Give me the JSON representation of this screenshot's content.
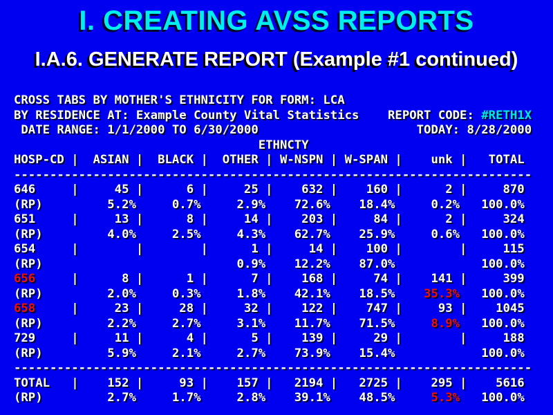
{
  "colors": {
    "background": "#0000F0",
    "title": "#00EEEE",
    "text": "#FFFFFF",
    "alert": "#EE1100",
    "code": "#00E6E6"
  },
  "slide": {
    "title": "I. CREATING AVSS REPORTS",
    "subtitle": "I.A.6. GENERATE REPORT (Example #1 continued)"
  },
  "report": {
    "meta_lines": [
      [
        {
          "t": "CROSS TABS BY MOTHER'S ETHNICITY FOR FORM: LCA"
        }
      ],
      [
        {
          "t": "BY RESIDENCE AT: Example County Vital Statistics    REPORT CODE: "
        },
        {
          "t": "#RETH1X",
          "c": "cyan",
          "n": "report-code"
        }
      ],
      [
        {
          "t": " DATE RANGE: 1/1/2000 TO 6/30/2000                      TODAY: 8/28/2000"
        }
      ],
      [
        {
          "t": "                                  ETHNCTY",
          "n": "group-header-ethncty"
        }
      ]
    ],
    "table": {
      "columns": [
        "HOSP-CD",
        "ASIAN",
        "BLACK",
        "OTHER",
        "W-NSPN",
        "W-SPAN",
        "unk",
        "TOTAL"
      ],
      "percent_label": "(RP)",
      "separator_char": "-",
      "separator_count": 72,
      "rows": [
        {
          "label": "646",
          "counts": [
            "45",
            "6",
            "25",
            "632",
            "160",
            "2",
            "870"
          ],
          "pcts": [
            "5.2%",
            "0.7%",
            "2.9%",
            "72.6%",
            "18.4%",
            "0.2%",
            "100.0%"
          ],
          "red_label": false,
          "red_pcts": []
        },
        {
          "label": "651",
          "counts": [
            "13",
            "8",
            "14",
            "203",
            "84",
            "2",
            "324"
          ],
          "pcts": [
            "4.0%",
            "2.5%",
            "4.3%",
            "62.7%",
            "25.9%",
            "0.6%",
            "100.0%"
          ],
          "red_label": false,
          "red_pcts": []
        },
        {
          "label": "654",
          "counts": [
            "",
            "",
            "1",
            "14",
            "100",
            "",
            "115"
          ],
          "pcts": [
            "",
            "",
            "0.9%",
            "12.2%",
            "87.0%",
            "",
            "100.0%"
          ],
          "red_label": false,
          "red_pcts": []
        },
        {
          "label": "656",
          "counts": [
            "8",
            "1",
            "7",
            "168",
            "74",
            "141",
            "399"
          ],
          "pcts": [
            "2.0%",
            "0.3%",
            "1.8%",
            "42.1%",
            "18.5%",
            "35.3%",
            "100.0%"
          ],
          "red_label": true,
          "red_pcts": [
            5
          ]
        },
        {
          "label": "658",
          "counts": [
            "23",
            "28",
            "32",
            "122",
            "747",
            "93",
            "1045"
          ],
          "pcts": [
            "2.2%",
            "2.7%",
            "3.1%",
            "11.7%",
            "71.5%",
            "8.9%",
            "100.0%"
          ],
          "red_label": true,
          "red_pcts": [
            5
          ]
        },
        {
          "label": "729",
          "counts": [
            "11",
            "4",
            "5",
            "139",
            "29",
            "",
            "188"
          ],
          "pcts": [
            "5.9%",
            "2.1%",
            "2.7%",
            "73.9%",
            "15.4%",
            "",
            "100.0%"
          ],
          "red_label": false,
          "red_pcts": []
        }
      ],
      "total_row": {
        "label": "TOTAL",
        "counts": [
          "152",
          "93",
          "157",
          "2194",
          "2725",
          "295",
          "5616"
        ],
        "pcts": [
          "2.7%",
          "1.7%",
          "2.8%",
          "39.1%",
          "48.5%",
          "5.3%",
          "100.0%"
        ],
        "red_label": false,
        "red_pcts": [
          5
        ]
      }
    }
  }
}
